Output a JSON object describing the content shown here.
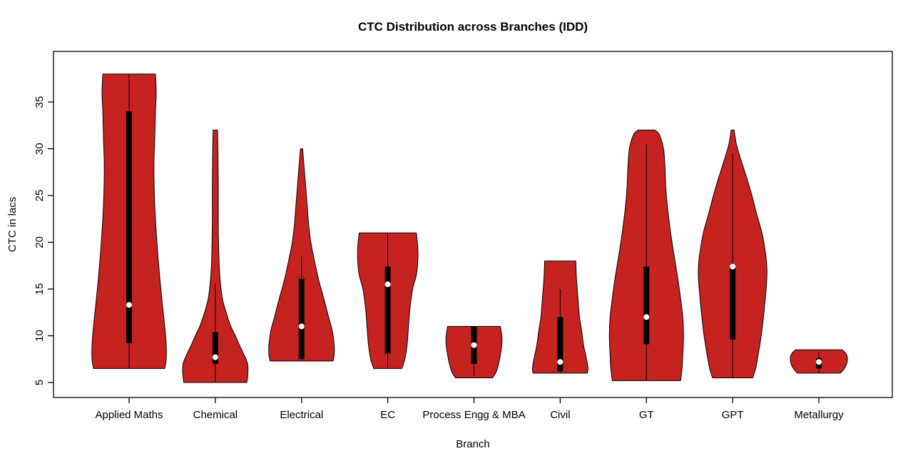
{
  "chart_data": {
    "type": "violin",
    "title": "CTC Distribution across Branches (IDD)",
    "xlabel": "Branch",
    "ylabel": "CTC in lacs",
    "ylim": [
      4,
      39
    ],
    "yticks": [
      5,
      10,
      15,
      20,
      25,
      30,
      35
    ],
    "grid": false,
    "legend": "none",
    "violin_fill": "#C62320",
    "violin_stroke": "#000000",
    "box_color": "#000000",
    "median_dot_color": "#FFFFFF",
    "categories": [
      "Applied Maths",
      "Chemical",
      "Electrical",
      "EC",
      "Process Engg & MBA",
      "Civil",
      "GT",
      "GPT",
      "Metallurgy"
    ],
    "violins": [
      {
        "name": "Applied Maths",
        "min": 6.5,
        "max": 38,
        "q1": 9.2,
        "q3": 34,
        "median": 13.3,
        "whisker_low": 6.5,
        "whisker_high": 38,
        "profile": [
          [
            6.5,
            0.96
          ],
          [
            7.5,
            1.0
          ],
          [
            9,
            1.0
          ],
          [
            11,
            0.96
          ],
          [
            14,
            0.88
          ],
          [
            17,
            0.81
          ],
          [
            20,
            0.75
          ],
          [
            24,
            0.69
          ],
          [
            28,
            0.67
          ],
          [
            31,
            0.69
          ],
          [
            34,
            0.71
          ],
          [
            36,
            0.73
          ],
          [
            38,
            0.71
          ]
        ]
      },
      {
        "name": "Chemical",
        "min": 5,
        "max": 32,
        "q1": 7.0,
        "q3": 10.4,
        "median": 7.7,
        "whisker_low": 5,
        "whisker_high": 15.6,
        "profile": [
          [
            5,
            0.85
          ],
          [
            6,
            0.88
          ],
          [
            7,
            0.87
          ],
          [
            8,
            0.77
          ],
          [
            9,
            0.65
          ],
          [
            10,
            0.54
          ],
          [
            11,
            0.42
          ],
          [
            12.5,
            0.29
          ],
          [
            14,
            0.19
          ],
          [
            16,
            0.13
          ],
          [
            18,
            0.1
          ],
          [
            22,
            0.08
          ],
          [
            26,
            0.08
          ],
          [
            30,
            0.07
          ],
          [
            32,
            0.06
          ]
        ]
      },
      {
        "name": "Electrical",
        "min": 7.3,
        "max": 30,
        "q1": 7.5,
        "q3": 16.1,
        "median": 11,
        "whisker_low": 7.3,
        "whisker_high": 18.5,
        "profile": [
          [
            7.3,
            0.85
          ],
          [
            8,
            0.88
          ],
          [
            9,
            0.88
          ],
          [
            10.5,
            0.83
          ],
          [
            12,
            0.73
          ],
          [
            14,
            0.6
          ],
          [
            16,
            0.46
          ],
          [
            18,
            0.35
          ],
          [
            20,
            0.25
          ],
          [
            22,
            0.19
          ],
          [
            24,
            0.15
          ],
          [
            26,
            0.11
          ],
          [
            28,
            0.07
          ],
          [
            30,
            0.03
          ]
        ]
      },
      {
        "name": "EC",
        "min": 6.5,
        "max": 21,
        "q1": 8.1,
        "q3": 17.4,
        "median": 15.5,
        "whisker_low": 6.5,
        "whisker_high": 21,
        "profile": [
          [
            6.5,
            0.38
          ],
          [
            7.5,
            0.46
          ],
          [
            9,
            0.52
          ],
          [
            11,
            0.56
          ],
          [
            13,
            0.6
          ],
          [
            15,
            0.67
          ],
          [
            16.5,
            0.77
          ],
          [
            18,
            0.81
          ],
          [
            19.5,
            0.81
          ],
          [
            21,
            0.77
          ]
        ]
      },
      {
        "name": "Process Engg & MBA",
        "min": 5.5,
        "max": 11,
        "q1": 7.0,
        "q3": 11,
        "median": 9,
        "whisker_low": 5.7,
        "whisker_high": 11,
        "profile": [
          [
            5.5,
            0.5
          ],
          [
            6,
            0.58
          ],
          [
            6.5,
            0.63
          ],
          [
            7.5,
            0.69
          ],
          [
            9,
            0.75
          ],
          [
            10,
            0.75
          ],
          [
            11,
            0.71
          ]
        ]
      },
      {
        "name": "Civil",
        "min": 6,
        "max": 18,
        "q1": 6.2,
        "q3": 12,
        "median": 7.2,
        "whisker_low": 6,
        "whisker_high": 15,
        "profile": [
          [
            6,
            0.73
          ],
          [
            6.5,
            0.75
          ],
          [
            7.5,
            0.71
          ],
          [
            9,
            0.63
          ],
          [
            10.5,
            0.58
          ],
          [
            12,
            0.52
          ],
          [
            14,
            0.48
          ],
          [
            16,
            0.44
          ],
          [
            18,
            0.42
          ]
        ]
      },
      {
        "name": "GT",
        "min": 5.2,
        "max": 32,
        "q1": 9.1,
        "q3": 17.4,
        "median": 12,
        "whisker_low": 5.2,
        "whisker_high": 30.5,
        "profile": [
          [
            5.2,
            0.92
          ],
          [
            6.5,
            0.96
          ],
          [
            8,
            0.98
          ],
          [
            10,
            1.0
          ],
          [
            12,
            0.98
          ],
          [
            14,
            0.92
          ],
          [
            16,
            0.85
          ],
          [
            18,
            0.77
          ],
          [
            20,
            0.69
          ],
          [
            22,
            0.62
          ],
          [
            24,
            0.56
          ],
          [
            26,
            0.52
          ],
          [
            28,
            0.5
          ],
          [
            30,
            0.46
          ],
          [
            31.5,
            0.35
          ],
          [
            32,
            0.23
          ]
        ]
      },
      {
        "name": "GPT",
        "min": 5.5,
        "max": 32,
        "q1": 9.6,
        "q3": 17.5,
        "median": 17.4,
        "whisker_low": 5.5,
        "whisker_high": 29.5,
        "profile": [
          [
            5.5,
            0.54
          ],
          [
            6.5,
            0.62
          ],
          [
            8,
            0.69
          ],
          [
            10,
            0.77
          ],
          [
            12,
            0.83
          ],
          [
            14,
            0.88
          ],
          [
            16,
            0.92
          ],
          [
            17.5,
            0.92
          ],
          [
            19,
            0.88
          ],
          [
            21,
            0.79
          ],
          [
            23,
            0.65
          ],
          [
            25,
            0.52
          ],
          [
            27,
            0.37
          ],
          [
            29,
            0.21
          ],
          [
            30.5,
            0.1
          ],
          [
            32,
            0.04
          ]
        ]
      },
      {
        "name": "Metallurgy",
        "min": 6,
        "max": 8.5,
        "q1": 6.5,
        "q3": 7.6,
        "median": 7.2,
        "whisker_low": 6,
        "whisker_high": 8.3,
        "profile": [
          [
            6,
            0.58
          ],
          [
            6.4,
            0.67
          ],
          [
            7,
            0.75
          ],
          [
            7.6,
            0.77
          ],
          [
            8.1,
            0.73
          ],
          [
            8.5,
            0.63
          ]
        ]
      }
    ]
  }
}
